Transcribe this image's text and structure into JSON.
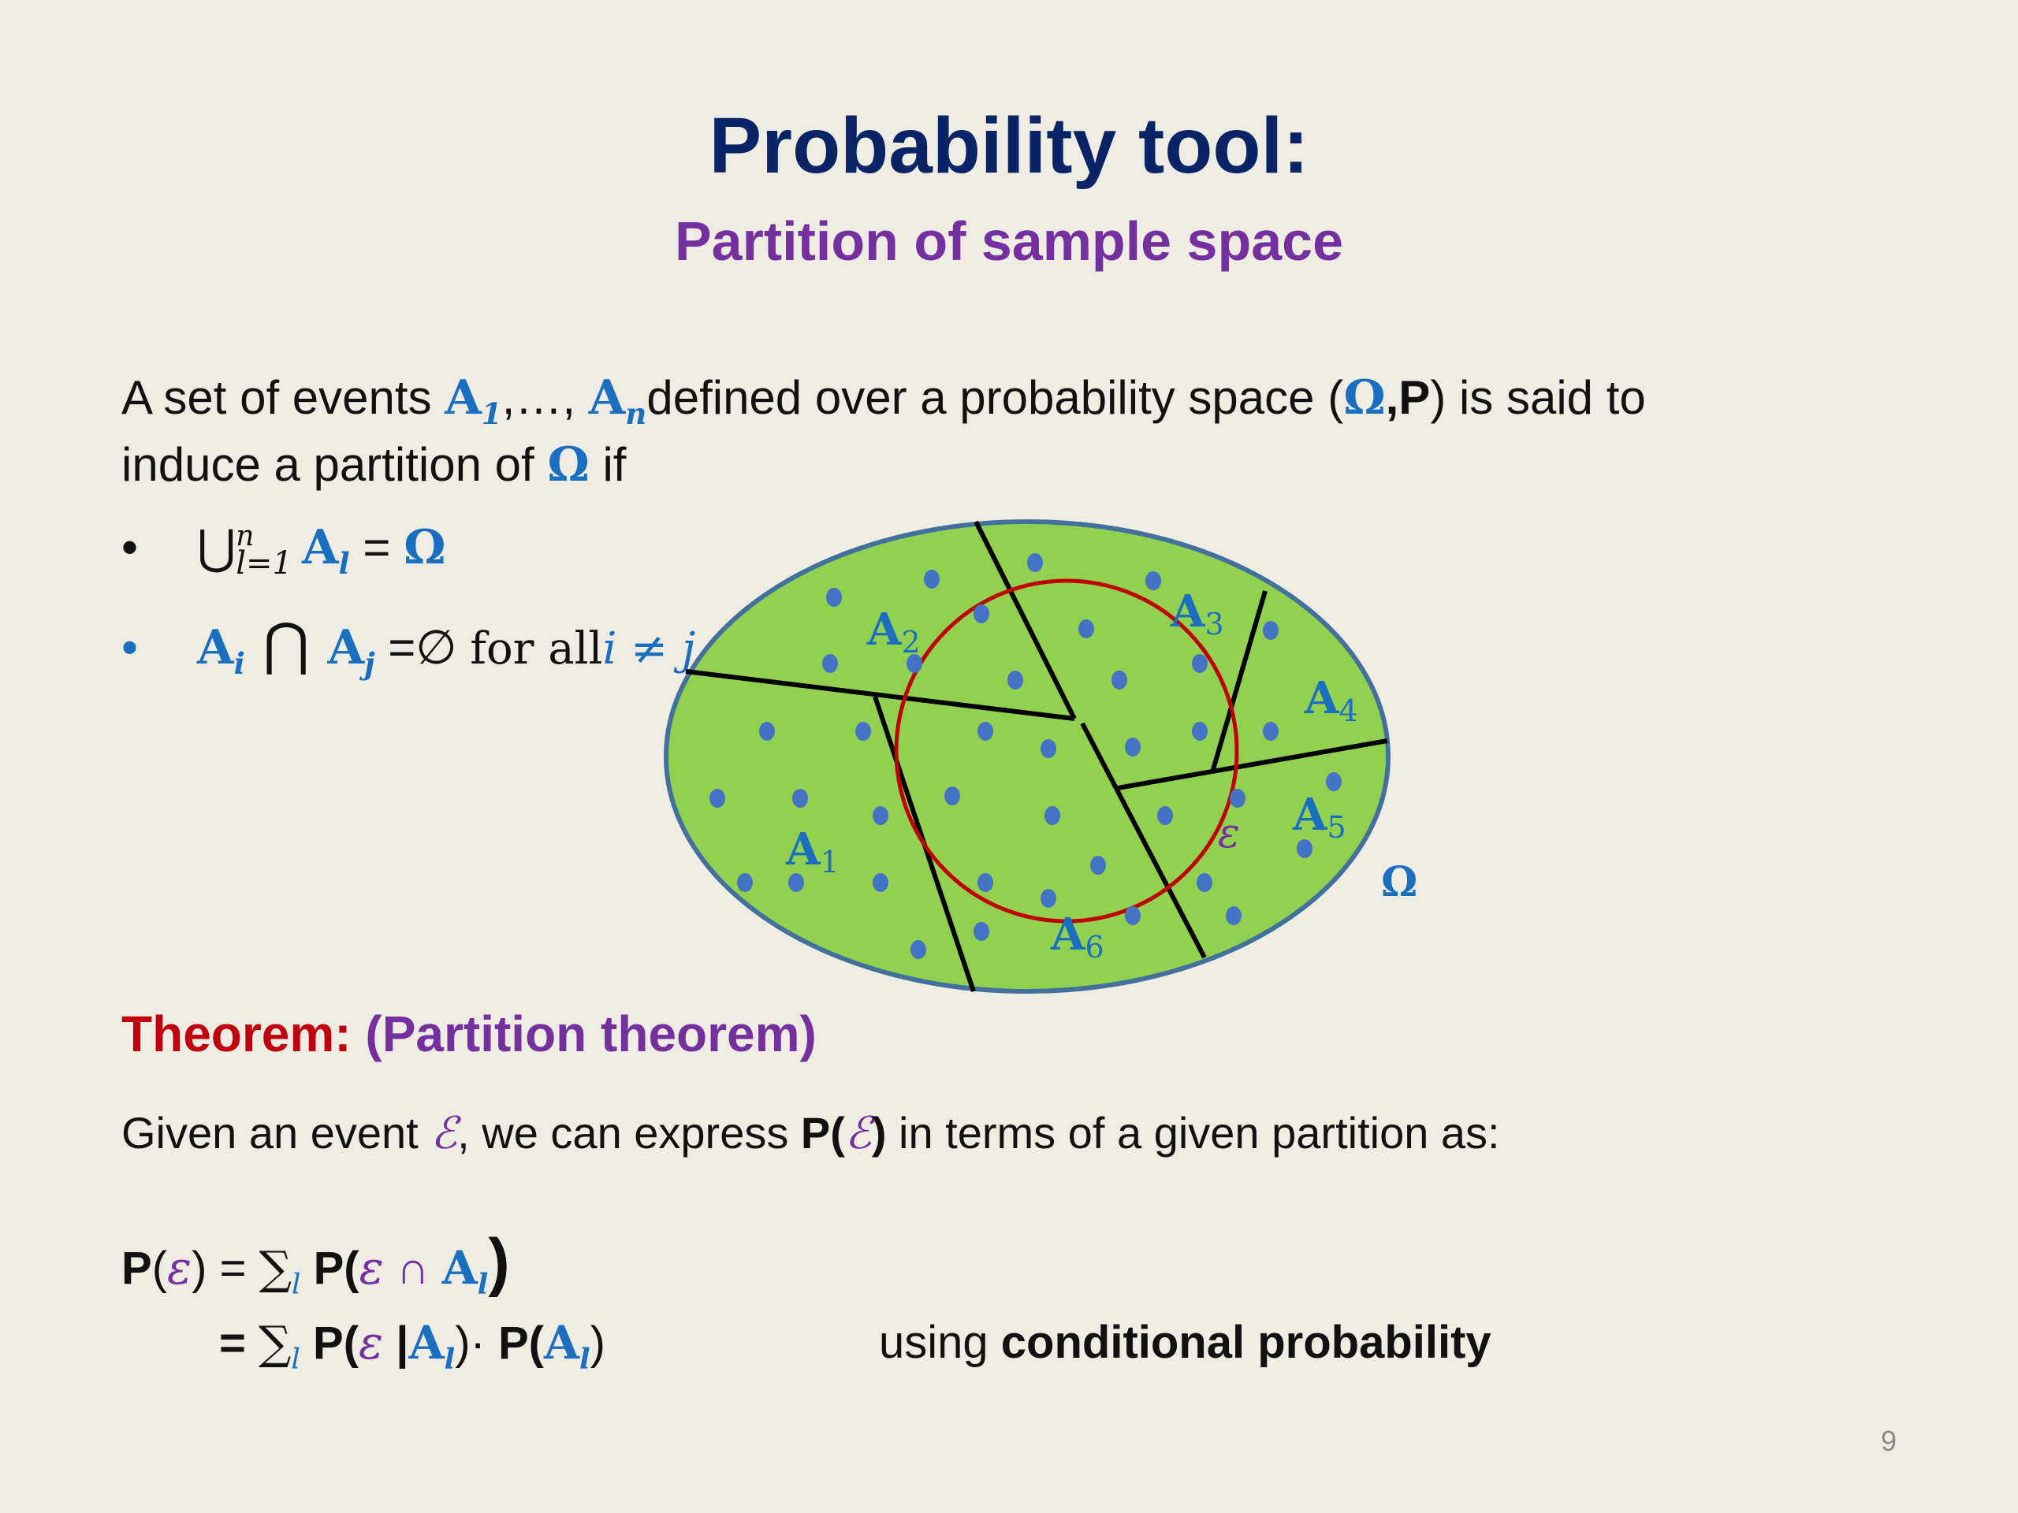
{
  "header": {
    "title": "Probability tool:",
    "subtitle": "Partition of sample space"
  },
  "intro": {
    "part1": "A set of events ",
    "a1": "A",
    "a1_sub": "1",
    "sep": ",…, ",
    "an": "A",
    "an_sub": "n",
    "part2": "defined over a probability space (",
    "omega": "Ω",
    "comma_p": ",P",
    "part3": ") is said to",
    "line2_part1": "induce a partition of ",
    "line2_omega": "Ω",
    "line2_part2": " if"
  },
  "bullets": {
    "b1": {
      "marker": "•",
      "union": "⋃",
      "sup": "n",
      "sub": "l=1",
      "a": "A",
      "a_sub": "l",
      "eq": " = ",
      "omega": "Ω"
    },
    "b2": {
      "marker": "•",
      "ai": "A",
      "ai_sub": "i",
      "cap": " ⋂ ",
      "aj": "A",
      "aj_sub": "j",
      "eq": " =∅ ",
      "forall": "for all",
      "cond": "i ≠ j"
    }
  },
  "diagram": {
    "regions": [
      {
        "label": "A",
        "sub": "1"
      },
      {
        "label": "A",
        "sub": "2"
      },
      {
        "label": "A",
        "sub": "3"
      },
      {
        "label": "A",
        "sub": "4"
      },
      {
        "label": "A",
        "sub": "5"
      },
      {
        "label": "A",
        "sub": "6"
      }
    ],
    "event_label": "ε",
    "space_label": "Ω",
    "colors": {
      "fill": "#92d050",
      "outline": "#41719c",
      "event_circle": "#c00000",
      "dots": "#4472c4"
    }
  },
  "theorem": {
    "key": "Theorem: ",
    "name": "(Partition theorem)"
  },
  "given": {
    "part1": "Given an event ",
    "eps": "ℰ",
    "part2": ", we can express ",
    "p_open": "P(",
    "eps2": "ℰ",
    "p_close": ")",
    "part3": " in terms of a given partition as:"
  },
  "formula1": {
    "p": "P",
    "open": "(",
    "eps": "ε",
    "close": ")",
    "eq": " =  ",
    "sum": "∑",
    "sum_sub": "l",
    "p2": " P(",
    "eps2": "ε",
    "cap": " ∩ ",
    "a": "A",
    "a_sub": "l",
    "close2": ")"
  },
  "formula2": {
    "eq": "= ",
    "sum": "∑",
    "sum_sub": "l",
    "p": " P(",
    "eps": "ε",
    "bar": " |",
    "a": "A",
    "a_sub": "l",
    "close": ")· ",
    "p2": "P(",
    "a2": "A",
    "a2_sub": "l",
    "close2": ")"
  },
  "note": {
    "using": "using ",
    "bold": "conditional probability"
  },
  "footer": {
    "page": "9"
  }
}
